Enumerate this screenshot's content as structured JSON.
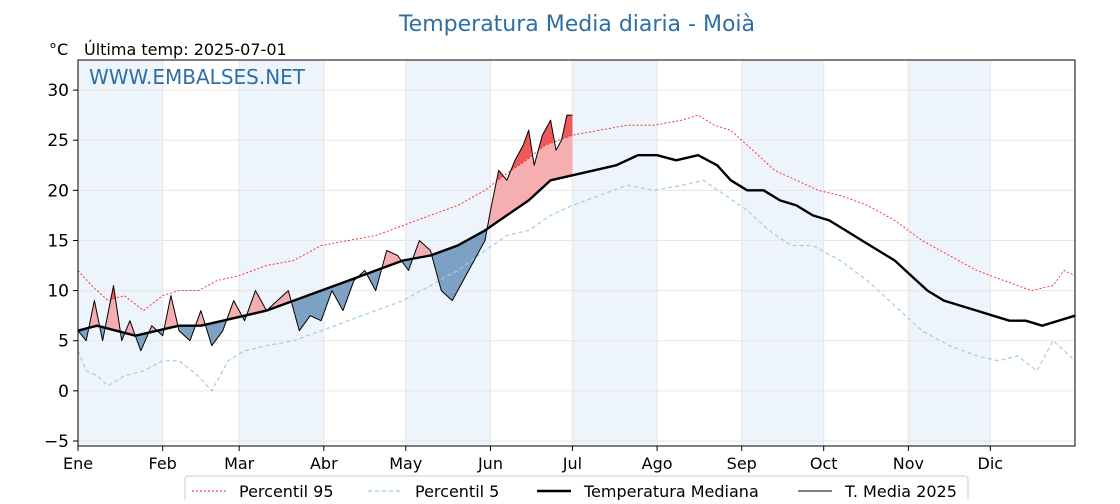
{
  "chart_data": {
    "type": "line",
    "title": "Temperatura Media diaria - Moià",
    "unit_label": "°C",
    "subtitle": "Última temp: 2025-07-01",
    "watermark": "WWW.EMBALSES.NET",
    "ylim": [
      -5.5,
      33
    ],
    "yticks": [
      {
        "value": -5,
        "label": "−5"
      },
      {
        "value": 0,
        "label": "0"
      },
      {
        "value": 5,
        "label": "5"
      },
      {
        "value": 10,
        "label": "10"
      },
      {
        "value": 15,
        "label": "15"
      },
      {
        "value": 20,
        "label": "20"
      },
      {
        "value": 25,
        "label": "25"
      },
      {
        "value": 30,
        "label": "30"
      }
    ],
    "xlim": [
      1,
      366
    ],
    "xticks": [
      {
        "day": 1,
        "label": "Ene"
      },
      {
        "day": 32,
        "label": "Feb"
      },
      {
        "day": 60,
        "label": "Mar"
      },
      {
        "day": 91,
        "label": "Abr"
      },
      {
        "day": 121,
        "label": "May"
      },
      {
        "day": 152,
        "label": "Jun"
      },
      {
        "day": 182,
        "label": "Jul"
      },
      {
        "day": 213,
        "label": "Ago"
      },
      {
        "day": 244,
        "label": "Sep"
      },
      {
        "day": 274,
        "label": "Oct"
      },
      {
        "day": 305,
        "label": "Nov"
      },
      {
        "day": 335,
        "label": "Dic"
      }
    ],
    "grid": true,
    "legend_position": "bottom",
    "colors": {
      "p95": "#ff2020",
      "p5": "#9ed0e0",
      "median": "#000000",
      "current": "#000000",
      "above_fill": "#f4a6a8",
      "above_strong_fill": "#ee5a5a",
      "below_fill": "#6f98bf",
      "band": "#eef4fb",
      "title": "#2f6fa3"
    },
    "series": [
      {
        "key": "p95",
        "name": "Percentil 95",
        "points": [
          [
            1,
            12
          ],
          [
            6,
            10.5
          ],
          [
            12,
            9
          ],
          [
            18,
            9.5
          ],
          [
            25,
            8
          ],
          [
            32,
            9.5
          ],
          [
            38,
            10
          ],
          [
            45,
            10
          ],
          [
            52,
            11
          ],
          [
            60,
            11.5
          ],
          [
            70,
            12.5
          ],
          [
            80,
            13
          ],
          [
            90,
            14.5
          ],
          [
            100,
            15
          ],
          [
            110,
            15.5
          ],
          [
            120,
            16.5
          ],
          [
            130,
            17.5
          ],
          [
            140,
            18.5
          ],
          [
            150,
            20
          ],
          [
            157,
            21.5
          ],
          [
            165,
            23
          ],
          [
            172,
            24.5
          ],
          [
            182,
            25.5
          ],
          [
            192,
            26
          ],
          [
            202,
            26.5
          ],
          [
            212,
            26.5
          ],
          [
            222,
            27
          ],
          [
            228,
            27.5
          ],
          [
            234,
            26.5
          ],
          [
            240,
            26
          ],
          [
            248,
            24
          ],
          [
            256,
            22
          ],
          [
            264,
            21
          ],
          [
            272,
            20
          ],
          [
            280,
            19.5
          ],
          [
            290,
            18.5
          ],
          [
            300,
            17
          ],
          [
            310,
            15
          ],
          [
            320,
            13.5
          ],
          [
            330,
            12
          ],
          [
            340,
            11
          ],
          [
            350,
            10
          ],
          [
            358,
            10.5
          ],
          [
            362,
            12
          ],
          [
            366,
            11.5
          ]
        ]
      },
      {
        "key": "p5",
        "name": "Percentil 5",
        "points": [
          [
            1,
            4
          ],
          [
            4,
            2
          ],
          [
            8,
            1.5
          ],
          [
            12,
            0.5
          ],
          [
            18,
            1.5
          ],
          [
            25,
            2
          ],
          [
            32,
            3
          ],
          [
            38,
            3
          ],
          [
            45,
            1.5
          ],
          [
            50,
            0
          ],
          [
            56,
            3
          ],
          [
            62,
            4
          ],
          [
            70,
            4.5
          ],
          [
            80,
            5
          ],
          [
            90,
            6
          ],
          [
            100,
            7
          ],
          [
            110,
            8
          ],
          [
            120,
            9
          ],
          [
            130,
            10.5
          ],
          [
            140,
            12
          ],
          [
            150,
            14
          ],
          [
            158,
            15.5
          ],
          [
            166,
            16
          ],
          [
            174,
            17.5
          ],
          [
            182,
            18.5
          ],
          [
            192,
            19.5
          ],
          [
            202,
            20.5
          ],
          [
            212,
            20
          ],
          [
            222,
            20.5
          ],
          [
            230,
            21
          ],
          [
            238,
            19.5
          ],
          [
            246,
            18
          ],
          [
            254,
            16
          ],
          [
            262,
            14.5
          ],
          [
            270,
            14.5
          ],
          [
            280,
            13
          ],
          [
            290,
            11
          ],
          [
            300,
            8.5
          ],
          [
            310,
            6
          ],
          [
            320,
            4.5
          ],
          [
            330,
            3.5
          ],
          [
            338,
            3
          ],
          [
            345,
            3.5
          ],
          [
            352,
            2
          ],
          [
            358,
            5
          ],
          [
            362,
            4
          ],
          [
            366,
            3
          ]
        ]
      },
      {
        "key": "median",
        "name": "Temperatura Mediana",
        "points": [
          [
            1,
            6
          ],
          [
            8,
            6.5
          ],
          [
            15,
            6
          ],
          [
            22,
            5.5
          ],
          [
            30,
            6
          ],
          [
            38,
            6.5
          ],
          [
            46,
            6.5
          ],
          [
            54,
            7
          ],
          [
            62,
            7.5
          ],
          [
            70,
            8
          ],
          [
            80,
            9
          ],
          [
            90,
            10
          ],
          [
            100,
            11
          ],
          [
            110,
            12
          ],
          [
            120,
            13
          ],
          [
            130,
            13.5
          ],
          [
            140,
            14.5
          ],
          [
            150,
            16
          ],
          [
            158,
            17.5
          ],
          [
            166,
            19
          ],
          [
            174,
            21
          ],
          [
            182,
            21.5
          ],
          [
            190,
            22
          ],
          [
            198,
            22.5
          ],
          [
            206,
            23.5
          ],
          [
            213,
            23.5
          ],
          [
            220,
            23
          ],
          [
            228,
            23.5
          ],
          [
            235,
            22.5
          ],
          [
            240,
            21
          ],
          [
            246,
            20
          ],
          [
            252,
            20
          ],
          [
            258,
            19
          ],
          [
            264,
            18.5
          ],
          [
            270,
            17.5
          ],
          [
            276,
            17
          ],
          [
            282,
            16
          ],
          [
            288,
            15
          ],
          [
            294,
            14
          ],
          [
            300,
            13
          ],
          [
            306,
            11.5
          ],
          [
            312,
            10
          ],
          [
            318,
            9
          ],
          [
            324,
            8.5
          ],
          [
            330,
            8
          ],
          [
            336,
            7.5
          ],
          [
            342,
            7
          ],
          [
            348,
            7
          ],
          [
            354,
            6.5
          ],
          [
            360,
            7
          ],
          [
            366,
            7.5
          ]
        ]
      },
      {
        "key": "current",
        "name": "T. Media 2025",
        "points": [
          [
            1,
            6
          ],
          [
            4,
            5
          ],
          [
            7,
            9
          ],
          [
            10,
            5
          ],
          [
            14,
            10.5
          ],
          [
            17,
            5
          ],
          [
            20,
            7
          ],
          [
            24,
            4
          ],
          [
            28,
            6.5
          ],
          [
            32,
            5.5
          ],
          [
            35,
            9.5
          ],
          [
            38,
            6
          ],
          [
            42,
            5
          ],
          [
            46,
            8
          ],
          [
            50,
            4.5
          ],
          [
            54,
            6
          ],
          [
            58,
            9
          ],
          [
            62,
            7
          ],
          [
            66,
            10
          ],
          [
            70,
            8
          ],
          [
            74,
            9
          ],
          [
            78,
            10
          ],
          [
            82,
            6
          ],
          [
            86,
            7.5
          ],
          [
            90,
            7
          ],
          [
            94,
            10
          ],
          [
            98,
            8
          ],
          [
            102,
            11
          ],
          [
            106,
            12
          ],
          [
            110,
            10
          ],
          [
            114,
            14
          ],
          [
            118,
            13.5
          ],
          [
            122,
            12
          ],
          [
            126,
            15
          ],
          [
            130,
            14
          ],
          [
            134,
            10
          ],
          [
            138,
            9
          ],
          [
            142,
            11
          ],
          [
            146,
            13
          ],
          [
            150,
            15
          ],
          [
            152,
            18
          ],
          [
            155,
            22
          ],
          [
            158,
            21
          ],
          [
            161,
            23
          ],
          [
            164,
            24.5
          ],
          [
            166,
            26
          ],
          [
            168,
            22.5
          ],
          [
            171,
            25.5
          ],
          [
            174,
            27
          ],
          [
            176,
            24
          ],
          [
            178,
            25
          ],
          [
            180,
            27.5
          ],
          [
            182,
            27.5
          ]
        ]
      }
    ],
    "legend": [
      {
        "key": "p95",
        "label": "Percentil 95"
      },
      {
        "key": "p5",
        "label": "Percentil 5"
      },
      {
        "key": "median",
        "label": "Temperatura Mediana"
      },
      {
        "key": "current",
        "label": "T. Media 2025"
      }
    ]
  }
}
